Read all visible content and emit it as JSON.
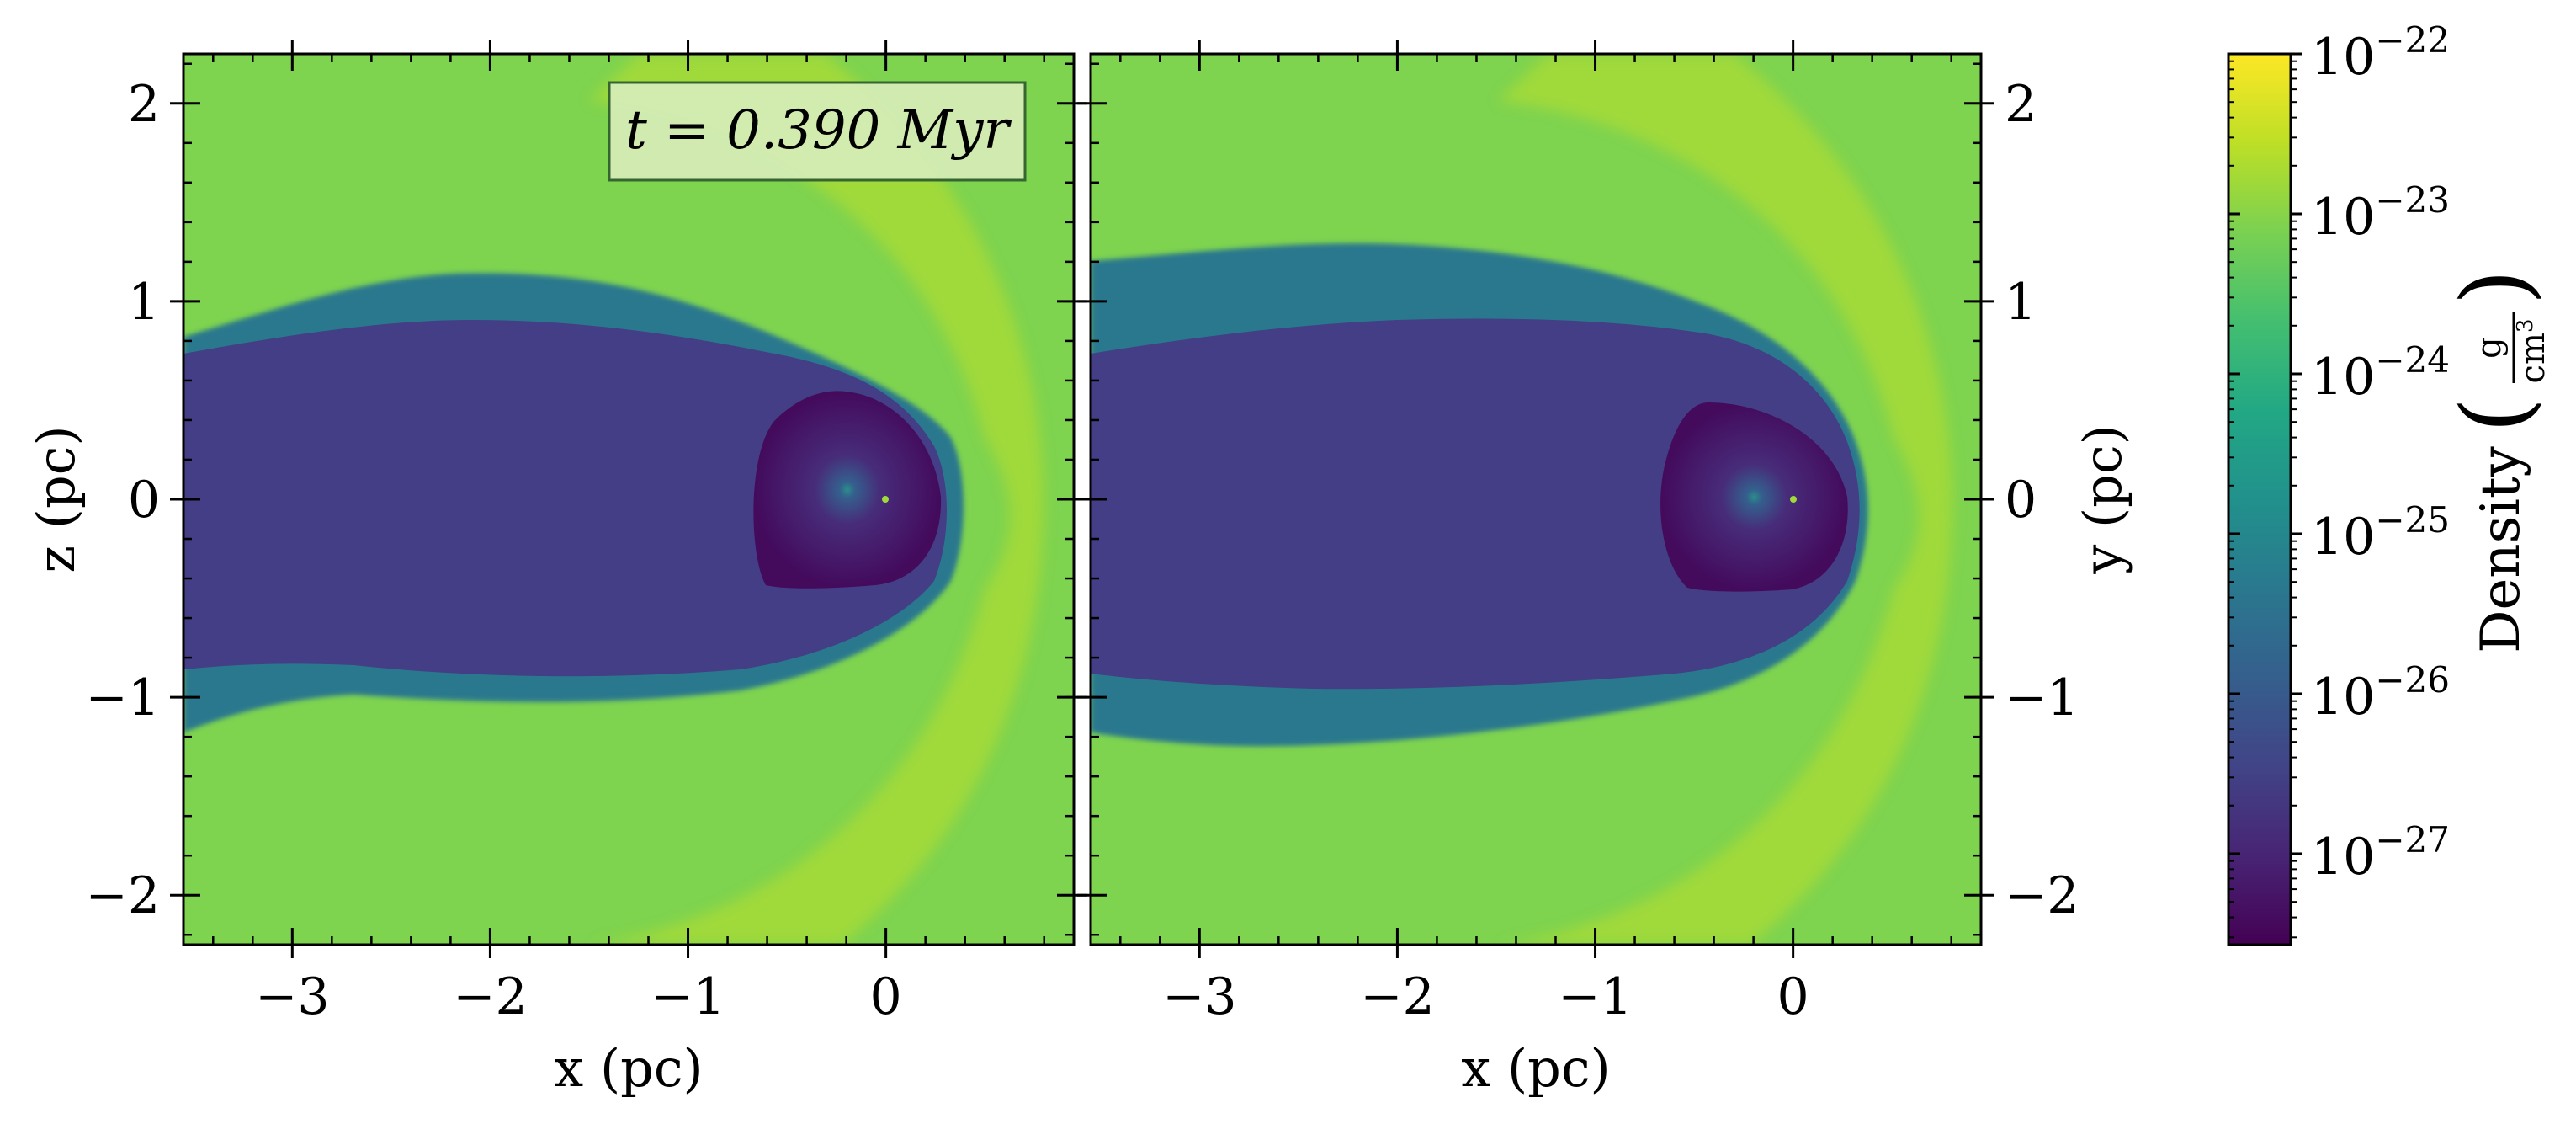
{
  "chart_data": [
    {
      "type": "heatmap",
      "panel": "x-z slice",
      "xlabel": "x  (pc)",
      "ylabel": "z  (pc)",
      "xlim": [
        -3.55,
        0.95
      ],
      "ylim": [
        -2.25,
        2.25
      ],
      "xticks": [
        -3,
        -2,
        -1,
        0
      ],
      "xtick_labels": [
        "−3",
        "−2",
        "−1",
        "0"
      ],
      "yticks": [
        -2,
        -1,
        0,
        1,
        2
      ],
      "ytick_labels": [
        "−2",
        "−1",
        "0",
        "1",
        "2"
      ],
      "annotation": "t = 0.390 Myr",
      "annotation_position": "top-right",
      "features": {
        "star_position": [
          0,
          0
        ],
        "inner_bubble_radius_pc": 0.55,
        "bow_shock_apex_x_pc": 0.55,
        "cavity_halfwidth_pc": 1.0
      }
    },
    {
      "type": "heatmap",
      "panel": "x-y slice",
      "xlabel": "x  (pc)",
      "ylabel": "y  (pc)",
      "ylabel_side": "right",
      "xlim": [
        -3.55,
        0.95
      ],
      "ylim": [
        -2.25,
        2.25
      ],
      "xticks": [
        -3,
        -2,
        -1,
        0
      ],
      "xtick_labels": [
        "−3",
        "−2",
        "−1",
        "0"
      ],
      "yticks": [
        -2,
        -1,
        0,
        1,
        2
      ],
      "ytick_labels": [
        "−2",
        "−1",
        "0",
        "1",
        "2"
      ],
      "features": {
        "star_position": [
          0,
          0
        ],
        "inner_bubble_radius_pc": 0.55,
        "bow_shock_apex_x_pc": 0.55,
        "cavity_halfwidth_pc": 1.05
      }
    }
  ],
  "colorbar": {
    "label": "Density",
    "unit_numerator": "g",
    "unit_denominator": "cm",
    "unit_denominator_exp": "3",
    "scale": "log",
    "range": [
      2.7e-28,
      1e-22
    ],
    "colormap": "viridis",
    "ticks": [
      {
        "base": "10",
        "exp": "−22",
        "value": 1e-22
      },
      {
        "base": "10",
        "exp": "−23",
        "value": 1e-23
      },
      {
        "base": "10",
        "exp": "−24",
        "value": 1e-24
      },
      {
        "base": "10",
        "exp": "−25",
        "value": 1e-25
      },
      {
        "base": "10",
        "exp": "−26",
        "value": 1e-26
      },
      {
        "base": "10",
        "exp": "−27",
        "value": 1e-27
      }
    ]
  },
  "colors": {
    "ambient": "#7ed34f",
    "bow_shock": "#c8e020",
    "shell": "#2a788e",
    "cavity": "#433e85",
    "inner_bubble": "#440154",
    "star": "#9fda3a"
  }
}
